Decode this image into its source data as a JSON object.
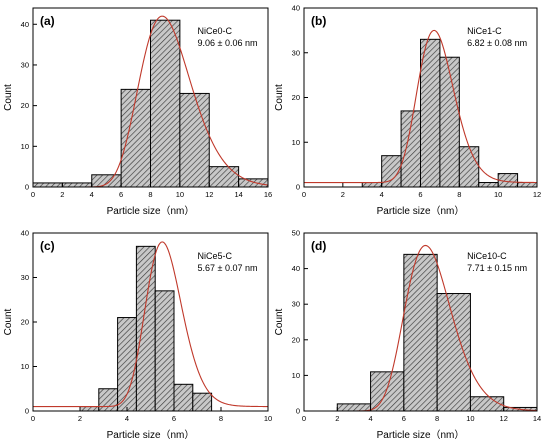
{
  "colors": {
    "bar_fill": "#c8c8c8",
    "bar_stroke": "#000000",
    "hatch": "#3a3a3a",
    "fit_curve": "#c0392b",
    "axis": "#000000"
  },
  "chart_data": [
    {
      "type": "bar",
      "panel_label": "(a)",
      "annotation_name": "NiCe0-C",
      "annotation_value": "9.06 ± 0.06 nm",
      "xlabel": "Particle size（nm）",
      "ylabel": "Count",
      "xlim": [
        0,
        16
      ],
      "ylim": [
        0,
        44
      ],
      "xticks": [
        0,
        2,
        4,
        6,
        8,
        10,
        12,
        14,
        16
      ],
      "yticks": [
        0,
        10,
        20,
        30,
        40
      ],
      "bin_width": 2,
      "bins": [
        {
          "center": 1,
          "count": 1
        },
        {
          "center": 3,
          "count": 1
        },
        {
          "center": 5,
          "count": 3
        },
        {
          "center": 7,
          "count": 24
        },
        {
          "center": 9,
          "count": 41
        },
        {
          "center": 11,
          "count": 23
        },
        {
          "center": 13,
          "count": 5
        },
        {
          "center": 15,
          "count": 2
        }
      ],
      "fit": {
        "kind": "lognormal",
        "peak_x": 8.8,
        "peak_y": 42,
        "sigma": 0.2,
        "baseline": 0
      }
    },
    {
      "type": "bar",
      "panel_label": "(b)",
      "annotation_name": "NiCe1-C",
      "annotation_value": "6.82 ± 0.08 nm",
      "xlabel": "Particle size（nm）",
      "ylabel": "Count",
      "xlim": [
        0,
        12
      ],
      "ylim": [
        0,
        40
      ],
      "xticks": [
        0,
        2,
        4,
        6,
        8,
        10,
        12
      ],
      "yticks": [
        0,
        10,
        20,
        30,
        40
      ],
      "bin_width": 1,
      "bins": [
        {
          "center": 3.5,
          "count": 1
        },
        {
          "center": 4.5,
          "count": 7
        },
        {
          "center": 5.5,
          "count": 17
        },
        {
          "center": 6.5,
          "count": 33
        },
        {
          "center": 7.5,
          "count": 29
        },
        {
          "center": 8.5,
          "count": 9
        },
        {
          "center": 9.5,
          "count": 1
        },
        {
          "center": 10.5,
          "count": 3
        },
        {
          "center": 11.5,
          "count": 1
        }
      ],
      "fit": {
        "kind": "lognormal",
        "peak_x": 6.7,
        "peak_y": 35,
        "sigma": 0.14,
        "baseline": 1
      }
    },
    {
      "type": "bar",
      "panel_label": "(c)",
      "annotation_name": "NiCe5-C",
      "annotation_value": "5.67 ± 0.07 nm",
      "xlabel": "Particle size（nm）",
      "ylabel": "Count",
      "xlim": [
        0,
        10
      ],
      "ylim": [
        0,
        40
      ],
      "xticks": [
        0,
        2,
        4,
        6,
        8,
        10
      ],
      "yticks": [
        0,
        10,
        20,
        30,
        40
      ],
      "bin_width": 0.8,
      "bins": [
        {
          "center": 2.4,
          "count": 1
        },
        {
          "center": 3.2,
          "count": 5
        },
        {
          "center": 4.0,
          "count": 21
        },
        {
          "center": 4.8,
          "count": 37
        },
        {
          "center": 5.6,
          "count": 27
        },
        {
          "center": 6.4,
          "count": 6
        },
        {
          "center": 7.2,
          "count": 4
        }
      ],
      "fit": {
        "kind": "lognormal",
        "peak_x": 5.5,
        "peak_y": 38,
        "sigma": 0.14,
        "baseline": 1
      }
    },
    {
      "type": "bar",
      "panel_label": "(d)",
      "annotation_name": "NiCe10-C",
      "annotation_value": "7.71 ± 0.15 nm",
      "xlabel": "Particle size（nm）",
      "ylabel": "Count",
      "xlim": [
        0,
        14
      ],
      "ylim": [
        0,
        50
      ],
      "xticks": [
        0,
        2,
        4,
        6,
        8,
        10,
        12,
        14
      ],
      "yticks": [
        0,
        10,
        20,
        30,
        40,
        50
      ],
      "bin_width": 2,
      "bins": [
        {
          "center": 3,
          "count": 2
        },
        {
          "center": 5,
          "count": 11
        },
        {
          "center": 7,
          "count": 44
        },
        {
          "center": 9,
          "count": 33
        },
        {
          "center": 11,
          "count": 4
        },
        {
          "center": 13,
          "count": 1
        }
      ],
      "fit": {
        "kind": "lognormal",
        "peak_x": 7.3,
        "peak_y": 46.5,
        "sigma": 0.19,
        "baseline": 0
      }
    }
  ]
}
